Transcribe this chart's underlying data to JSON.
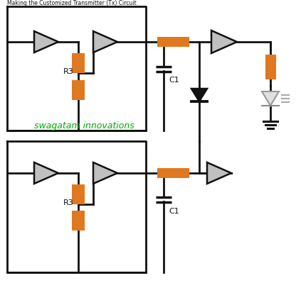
{
  "bg_color": "#ffffff",
  "orange": "#E07820",
  "dark": "#111111",
  "gray_tri": "#c0c0c0",
  "gray_tri_edge": "#888888",
  "text_color_green": "#00aa00",
  "text_watermark": "swagatam innovations",
  "label_R3": "R3",
  "label_C1": "C1",
  "figsize": [
    4.23,
    3.99
  ],
  "dpi": 100,
  "title": "Making the Customized Transmitter (Tx) Circuit"
}
